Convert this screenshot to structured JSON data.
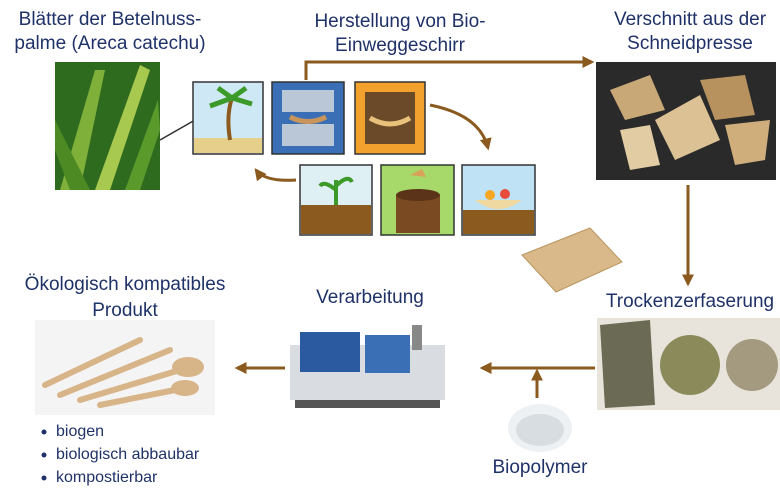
{
  "labels": {
    "leaves": [
      "Blätter der Betelnuss-",
      "palme (Areca catechu)"
    ],
    "production": [
      "Herstellung von Bio-",
      "Einweggeschirr"
    ],
    "offcuts": [
      "Verschnitt aus der",
      "Schneidpresse"
    ],
    "defibration": "Trockenzerfaserung",
    "processing": "Verarbeitung",
    "product": [
      "Ökologisch kompatibles",
      "Produkt"
    ],
    "biopolymer": "Biopolymer"
  },
  "properties": [
    "biogen",
    "biologisch abbaubar",
    "kompostierbar"
  ]
}
